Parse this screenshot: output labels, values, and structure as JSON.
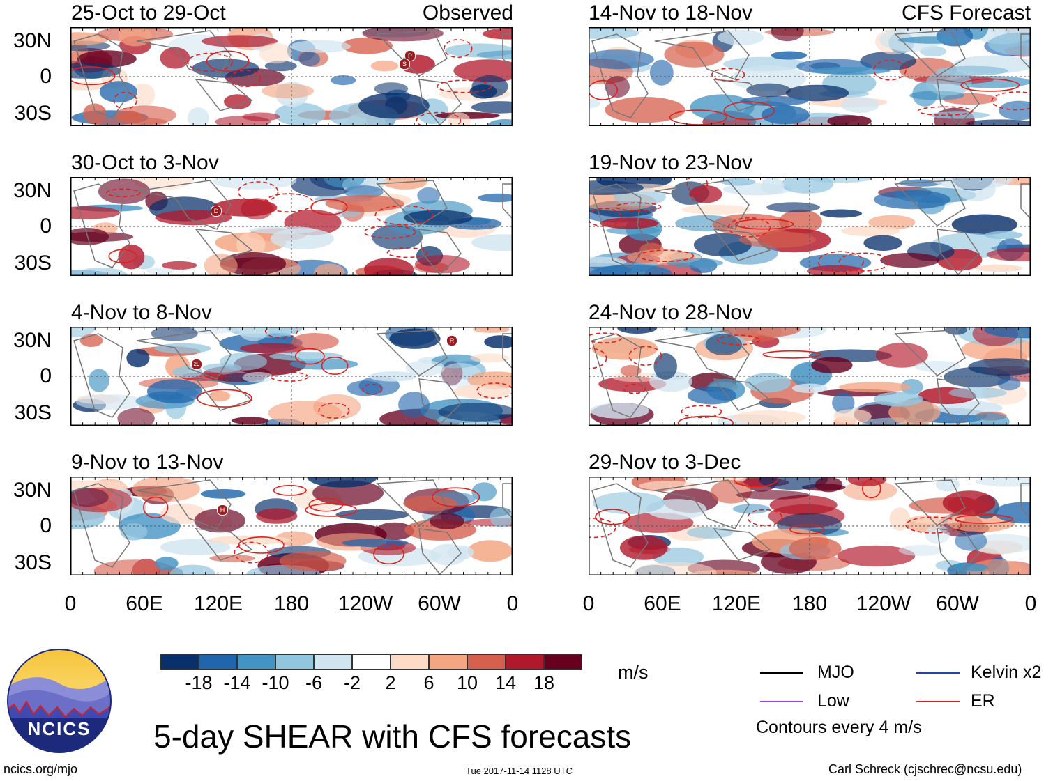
{
  "observed_label": "Observed",
  "forecast_label": "CFS Forecast",
  "lat_labels": [
    "30N",
    "0",
    "30S"
  ],
  "lon_labels": [
    "0",
    "60E",
    "120E",
    "180",
    "120W",
    "60W",
    "0"
  ],
  "panels": {
    "observed": [
      {
        "title": "25-Oct to 29-Oct"
      },
      {
        "title": "30-Oct to 3-Nov"
      },
      {
        "title": "4-Nov to 8-Nov"
      },
      {
        "title": "9-Nov to 13-Nov"
      }
    ],
    "forecast": [
      {
        "title": "14-Nov to 18-Nov"
      },
      {
        "title": "19-Nov to 23-Nov"
      },
      {
        "title": "24-Nov to 28-Nov"
      },
      {
        "title": "29-Nov to 3-Dec"
      }
    ]
  },
  "storm_markers": [
    "P",
    "S",
    "D",
    "29",
    "R",
    "H"
  ],
  "colorbar": {
    "colors": [
      "#08306b",
      "#2166ac",
      "#4393c3",
      "#92c5de",
      "#d1e5f0",
      "#ffffff",
      "#fddbc7",
      "#f4a582",
      "#d6604d",
      "#b2182b",
      "#67001f"
    ],
    "labels": [
      "-18",
      "-14",
      "-10",
      "-6",
      "-2",
      "2",
      "6",
      "10",
      "14",
      "18"
    ],
    "units": "m/s"
  },
  "legend": {
    "items": [
      {
        "label": "MJO",
        "color": "#000000"
      },
      {
        "label": "Kelvin x2",
        "color": "#1f3fd0"
      },
      {
        "label": "Low",
        "color": "#a040f0"
      },
      {
        "label": "ER",
        "color": "#e0201c"
      }
    ],
    "contours_note": "Contours every 4 m/s"
  },
  "main_title": "5-day SHEAR with CFS forecasts",
  "logo_text": "NCICS",
  "website": "ncics.org/mjo",
  "timestamp": "Tue 2017-11-14 1128 UTC",
  "credit": "Carl Schreck (cjschrec@ncsu.edu)"
}
